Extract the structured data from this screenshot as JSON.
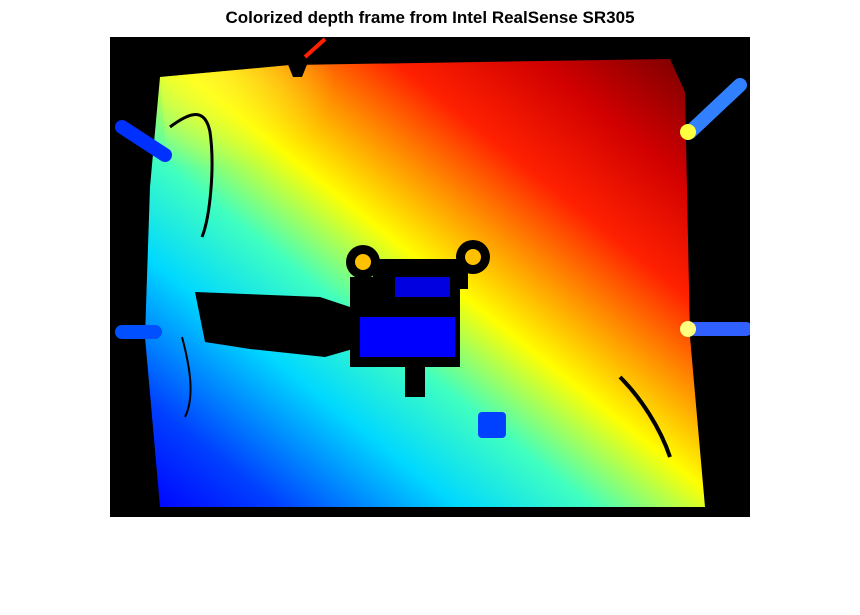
{
  "figure": {
    "title": "Colorized depth frame from Intel RealSense SR305"
  },
  "image": {
    "description_colormap": "jet",
    "colors": {
      "background": "#000000",
      "near": "#0000ff",
      "mid": "#00ffff",
      "middle": "#ffff00",
      "far": "#ff0000",
      "farthest": "#800000"
    }
  }
}
